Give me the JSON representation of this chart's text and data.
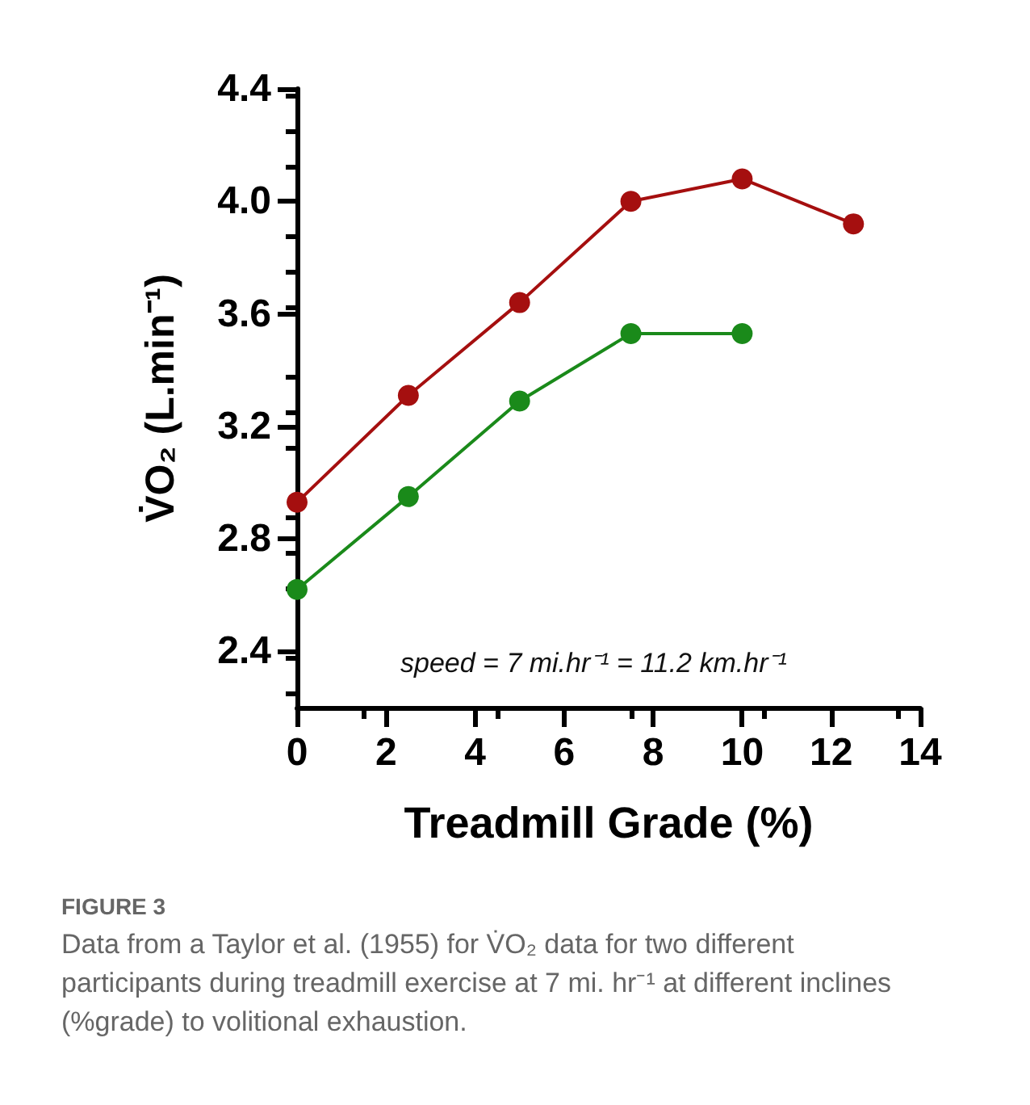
{
  "chart_data": {
    "type": "line",
    "xlabel": "Treadmill Grade (%)",
    "ylabel": "V̇O₂ (L.min⁻¹)",
    "x": [
      0,
      2.5,
      5,
      7.5,
      10,
      12.5
    ],
    "series": [
      {
        "color": "#a50f0f",
        "values": [
          2.93,
          3.31,
          3.64,
          4.0,
          4.08,
          3.92
        ]
      },
      {
        "color": "#1a8a1a",
        "values": [
          2.62,
          2.95,
          3.29,
          3.53,
          3.53,
          null
        ]
      }
    ],
    "xlim": [
      0,
      14
    ],
    "xticks": [
      0,
      2,
      4,
      6,
      8,
      10,
      12,
      14
    ],
    "ylim": [
      2.2,
      4.4
    ],
    "yticks": [
      2.4,
      2.8,
      3.2,
      3.6,
      {
        "value": 4,
        "label": "4.0"
      },
      4.4
    ],
    "grid": false,
    "marker": "circle",
    "line_style": "solid",
    "annotations": [
      "speed = 7 mi.hr⁻¹ = 11.2 km.hr⁻¹",
      "FIGURE 3",
      "Data from a Taylor et al. (1955) for V̇O₂ data for two different participants during treadmill exercise at 7 mi. hr⁻¹ at different inclines (%grade) to volitional exhaustion."
    ]
  }
}
